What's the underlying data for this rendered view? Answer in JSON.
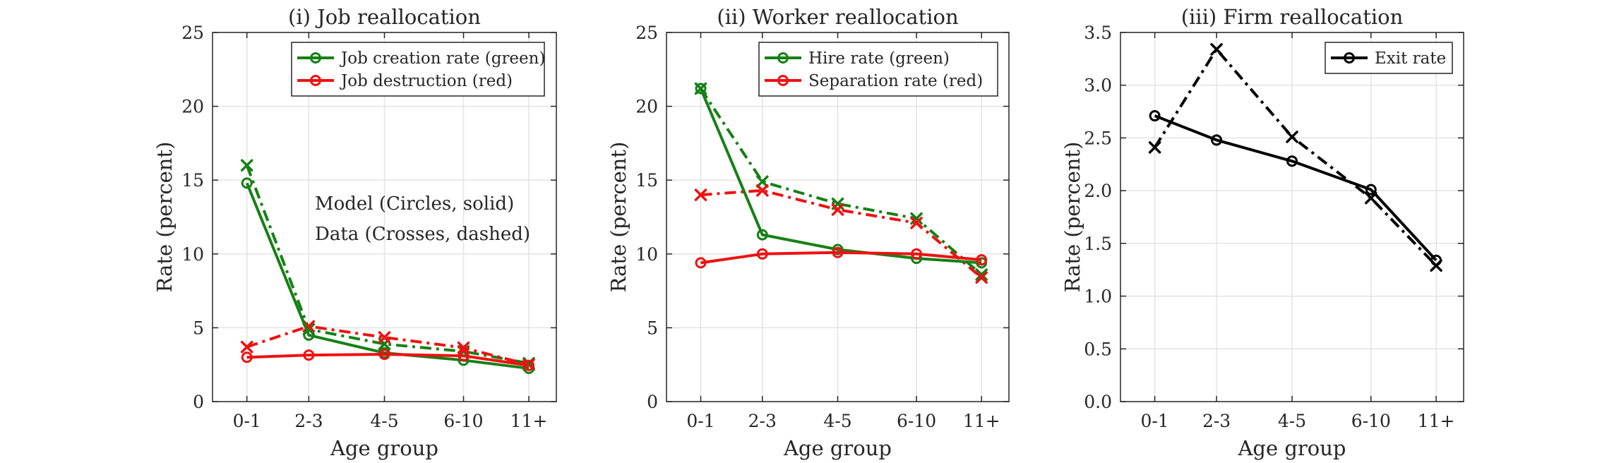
{
  "chart_data": [
    {
      "type": "line",
      "title": "(i) Job reallocation",
      "xlabel": "Age group",
      "ylabel": "Rate (percent)",
      "categories": [
        "0-1",
        "2-3",
        "4-5",
        "6-10",
        "11+"
      ],
      "ylim": [
        0,
        25
      ],
      "yticks": [
        "0",
        "5",
        "10",
        "15",
        "20",
        "25"
      ],
      "grid": true,
      "legend_position": "top-right",
      "legend": [
        "Job creation rate (green)",
        "Job destruction (red)"
      ],
      "annotations": [
        "Model (Circles, solid)",
        "Data (Crosses, dashed)"
      ],
      "series": [
        {
          "name": "Job creation rate (green)",
          "source": "model",
          "color": "#168016",
          "marker": "circle",
          "dash": "solid",
          "values": [
            14.8,
            4.5,
            3.3,
            2.8,
            2.25
          ]
        },
        {
          "name": "Job destruction (red)",
          "source": "model",
          "color": "#ee1111",
          "marker": "circle",
          "dash": "solid",
          "values": [
            3.0,
            3.15,
            3.2,
            3.1,
            2.45
          ]
        },
        {
          "source": "data",
          "color": "#168016",
          "marker": "cross",
          "dash": "dashdot",
          "values": [
            16.0,
            4.9,
            3.9,
            3.4,
            2.6
          ]
        },
        {
          "source": "data",
          "color": "#ee1111",
          "marker": "cross",
          "dash": "dashdot",
          "values": [
            3.7,
            5.1,
            4.35,
            3.65,
            2.5
          ]
        }
      ]
    },
    {
      "type": "line",
      "title": "(ii) Worker reallocation",
      "xlabel": "Age group",
      "ylabel": "Rate (percent)",
      "categories": [
        "0-1",
        "2-3",
        "4-5",
        "6-10",
        "11+"
      ],
      "ylim": [
        0,
        25
      ],
      "yticks": [
        "0",
        "5",
        "10",
        "15",
        "20",
        "25"
      ],
      "grid": true,
      "legend_position": "top-right",
      "legend": [
        "Hire rate (green)",
        "Separation rate (red)"
      ],
      "series": [
        {
          "name": "Hire rate (green)",
          "source": "model",
          "color": "#168016",
          "marker": "circle",
          "dash": "solid",
          "values": [
            21.2,
            11.3,
            10.3,
            9.7,
            9.4
          ]
        },
        {
          "name": "Separation rate (red)",
          "source": "model",
          "color": "#ee1111",
          "marker": "circle",
          "dash": "solid",
          "values": [
            9.4,
            10.0,
            10.1,
            10.0,
            9.6
          ]
        },
        {
          "source": "data",
          "color": "#168016",
          "marker": "cross",
          "dash": "dashdot",
          "values": [
            21.2,
            14.9,
            13.4,
            12.4,
            8.6
          ]
        },
        {
          "source": "data",
          "color": "#ee1111",
          "marker": "cross",
          "dash": "dashdot",
          "values": [
            14.0,
            14.3,
            13.0,
            12.1,
            8.4
          ]
        }
      ]
    },
    {
      "type": "line",
      "title": "(iii) Firm reallocation",
      "xlabel": "Age group",
      "ylabel": "Rate (percent)",
      "categories": [
        "0-1",
        "2-3",
        "4-5",
        "6-10",
        "11+"
      ],
      "ylim": [
        0,
        3.5
      ],
      "yticks": [
        "0.0",
        "0.5",
        "1.0",
        "1.5",
        "2.0",
        "2.5",
        "3.0",
        "3.5"
      ],
      "grid": true,
      "legend_position": "top-right",
      "legend": [
        "Exit rate"
      ],
      "series": [
        {
          "name": "Exit rate",
          "source": "model",
          "color": "#000000",
          "marker": "circle",
          "dash": "solid",
          "values": [
            2.71,
            2.48,
            2.28,
            2.01,
            1.34
          ]
        },
        {
          "source": "data",
          "color": "#000000",
          "marker": "cross",
          "dash": "dashdot",
          "values": [
            2.41,
            3.34,
            2.51,
            1.93,
            1.29
          ]
        }
      ]
    }
  ]
}
